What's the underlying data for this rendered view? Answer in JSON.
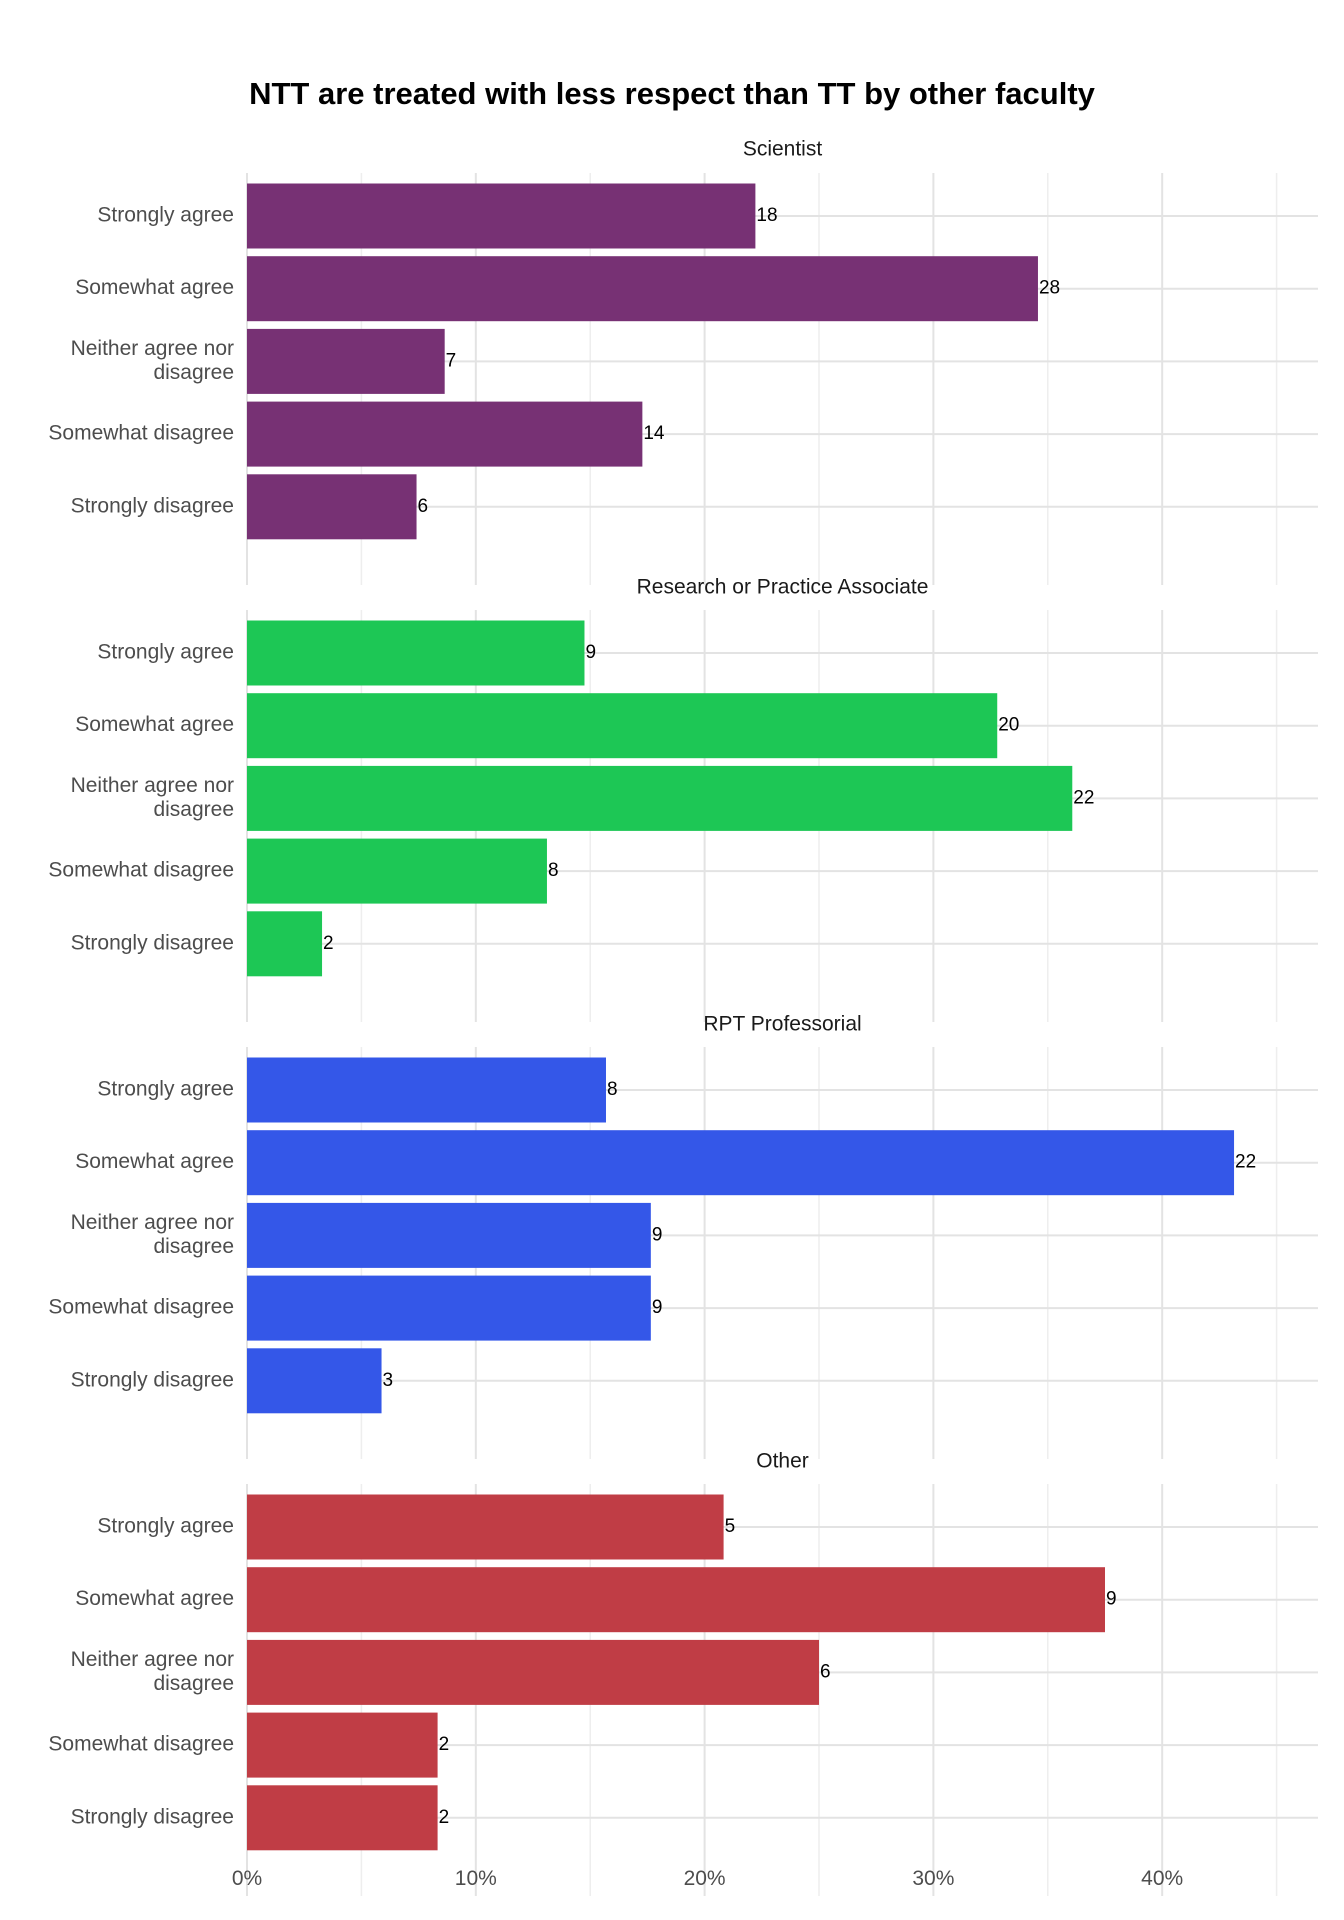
{
  "chart_data": {
    "type": "bar",
    "orientation": "horizontal",
    "title": "NTT are treated with less respect than TT by other faculty",
    "xlabel": "",
    "ylabel": "",
    "xlim": [
      0,
      0.47
    ],
    "x_ticks": [
      0,
      0.1,
      0.2,
      0.3,
      0.4
    ],
    "x_tick_labels": [
      "0%",
      "10%",
      "20%",
      "30%",
      "40%"
    ],
    "grid": true,
    "legend": "none",
    "categories": [
      [
        "Strongly agree"
      ],
      [
        "Somewhat agree"
      ],
      [
        "Neither agree nor",
        "disagree"
      ],
      [
        "Somewhat disagree"
      ],
      [
        "Strongly disagree"
      ]
    ],
    "facets": [
      {
        "name": "Scientist",
        "color": "#773174",
        "counts": [
          18,
          28,
          7,
          14,
          6
        ],
        "percent_values": [
          0.2222,
          0.3457,
          0.0864,
          0.1728,
          0.0741
        ]
      },
      {
        "name": "Research or Practice Associate",
        "color": "#1dc755",
        "counts": [
          9,
          20,
          22,
          8,
          2
        ],
        "percent_values": [
          0.1475,
          0.3279,
          0.3607,
          0.1311,
          0.0328
        ]
      },
      {
        "name": "RPT Professorial",
        "color": "#3457e8",
        "counts": [
          8,
          22,
          9,
          9,
          3
        ],
        "percent_values": [
          0.1569,
          0.4314,
          0.1765,
          0.1765,
          0.0588
        ]
      },
      {
        "name": "Other",
        "color": "#c03d45",
        "counts": [
          5,
          9,
          6,
          2,
          2
        ],
        "percent_values": [
          0.2083,
          0.375,
          0.25,
          0.0833,
          0.0833
        ]
      }
    ]
  }
}
